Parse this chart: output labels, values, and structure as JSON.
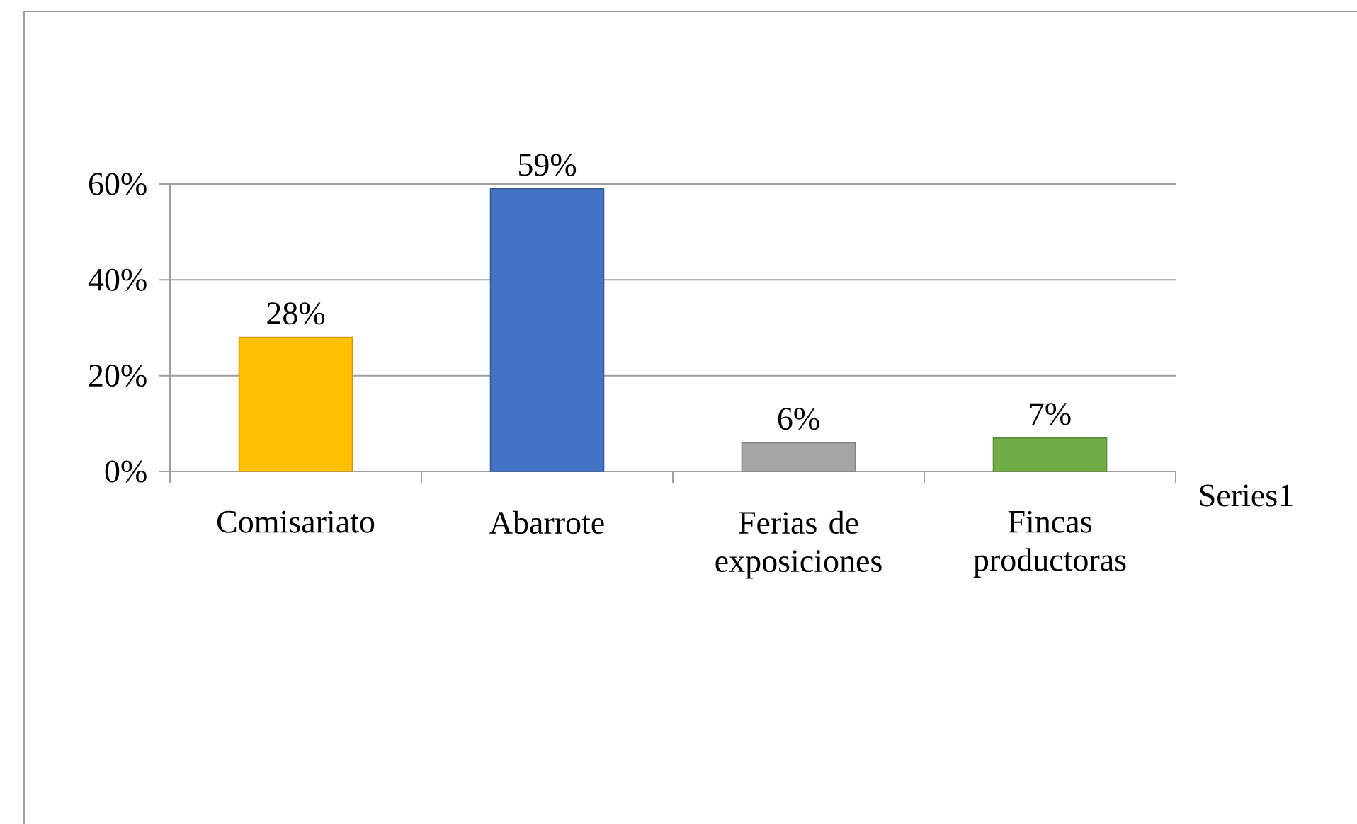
{
  "chart_data": {
    "type": "bar",
    "categories": [
      "Comisariato",
      "Abarrote",
      "Ferias de exposiciones",
      "Fincas productoras"
    ],
    "series": [
      {
        "name": "Series1",
        "colors": [
          "#ffc000",
          "#4472c4",
          "#a5a5a5",
          "#70ad47"
        ],
        "values": [
          28,
          59,
          6,
          7
        ],
        "value_labels": [
          "28%",
          "59%",
          "6%",
          "7%"
        ]
      }
    ],
    "ylim": [
      0,
      60
    ],
    "yticks": [
      {
        "value": 0,
        "label": "0%"
      },
      {
        "value": 20,
        "label": "20%"
      },
      {
        "value": 40,
        "label": "40%"
      },
      {
        "value": 60,
        "label": "60%"
      }
    ],
    "grid": "y"
  }
}
